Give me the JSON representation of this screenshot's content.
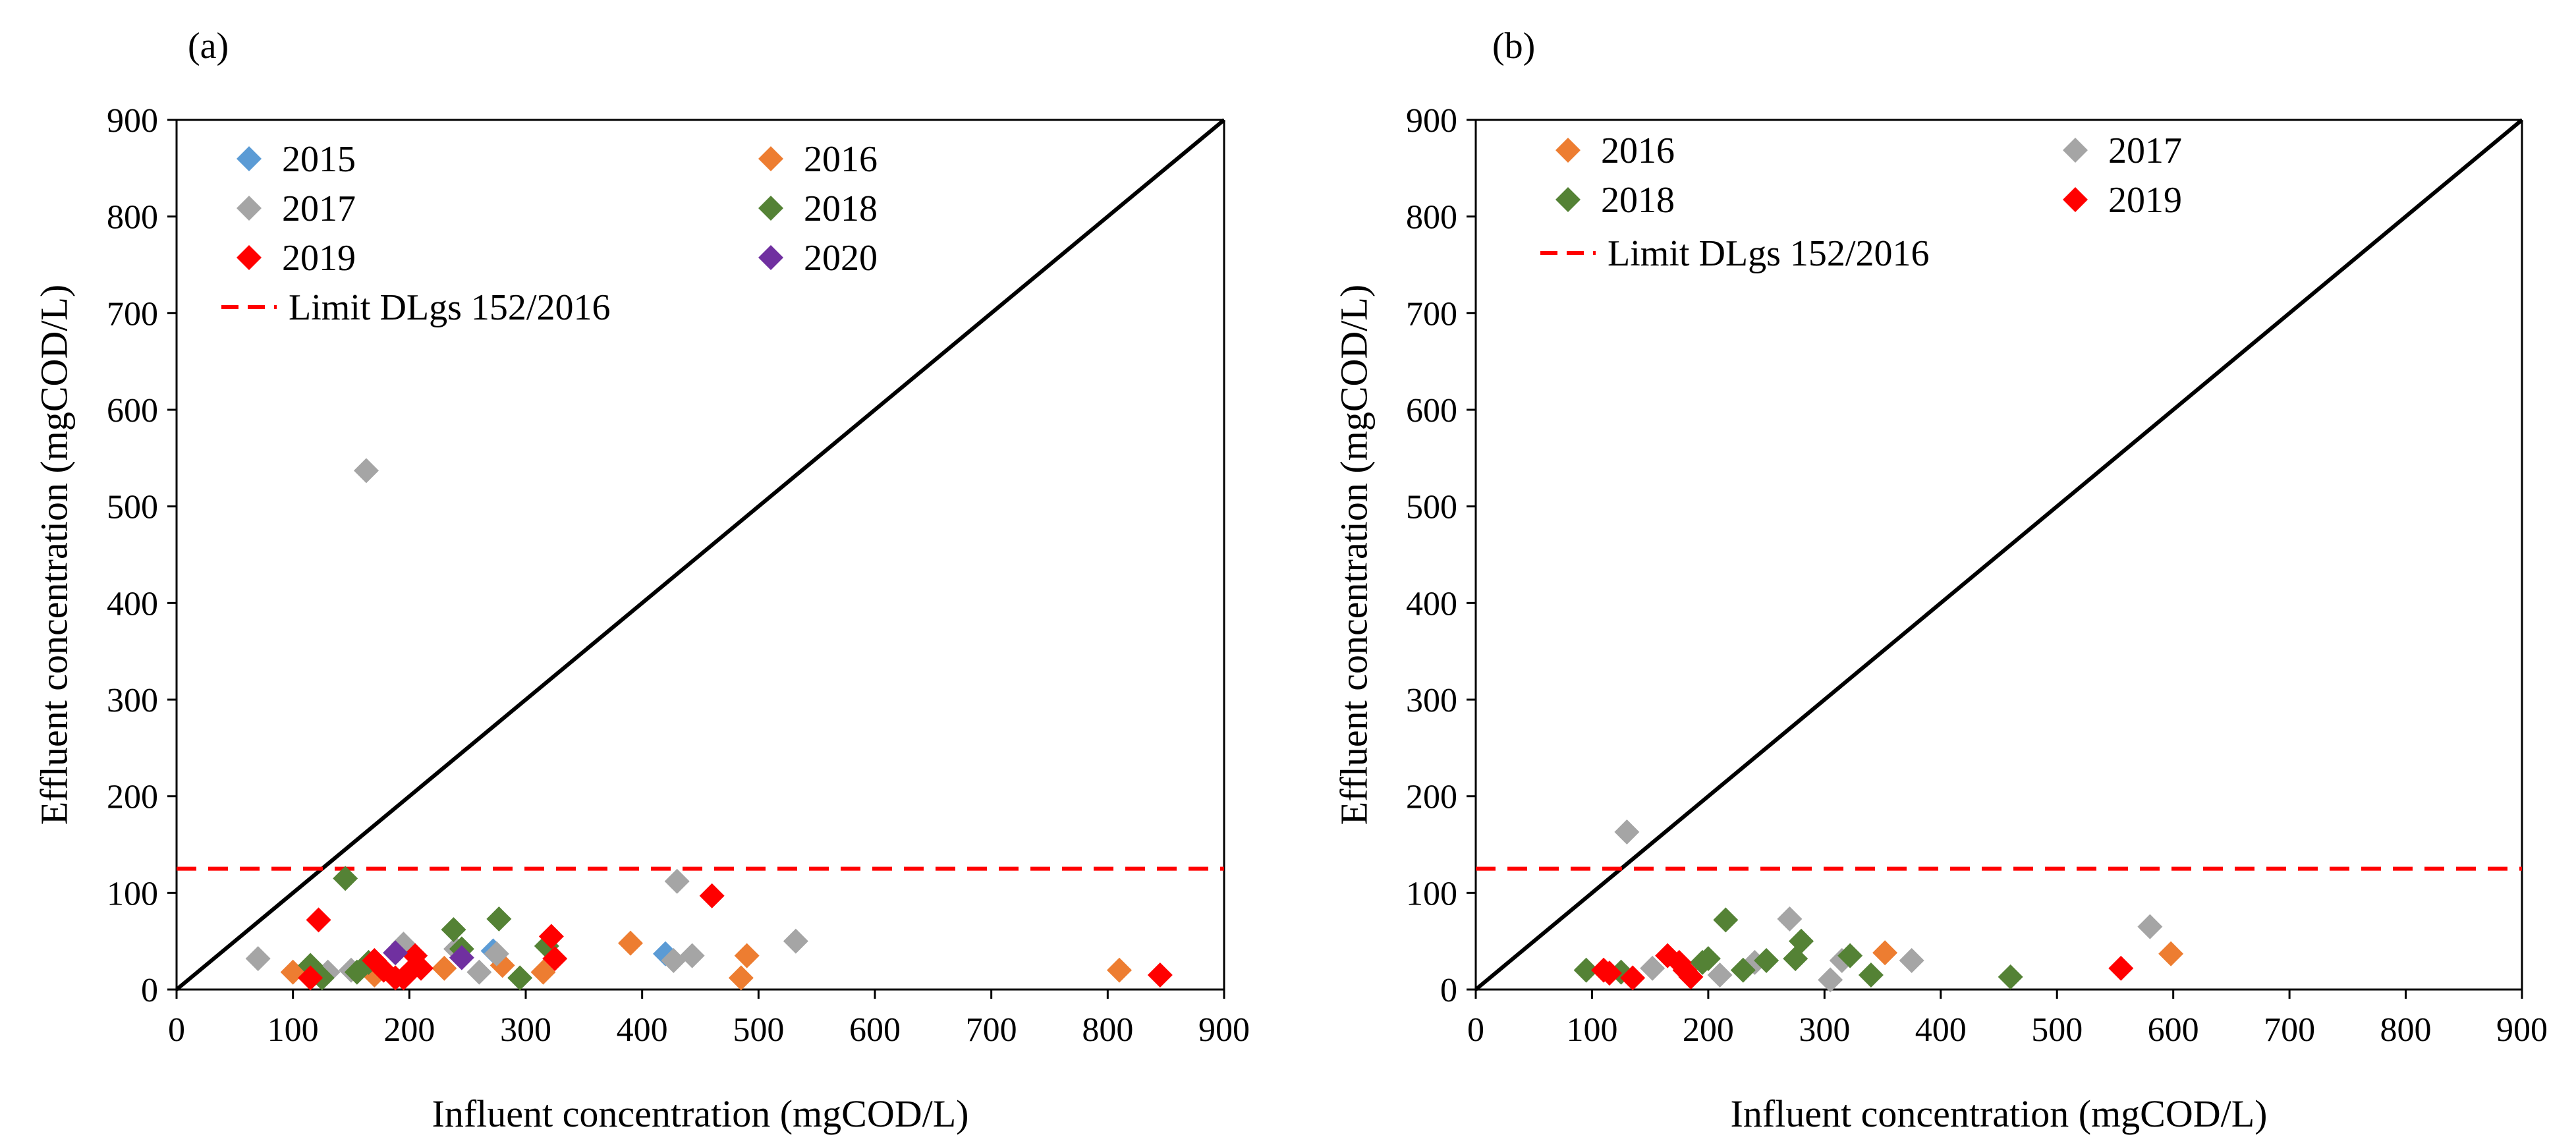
{
  "chart_data": [
    {
      "type": "scatter",
      "panel_label": "(a)",
      "xlabel": "Influent concentration (mgCOD/L)",
      "ylabel": "Effluent concentration (mgCOD/L)",
      "xlim": [
        0,
        900
      ],
      "ylim": [
        0,
        900
      ],
      "xticks": [
        "0",
        "100",
        "200",
        "300",
        "400",
        "500",
        "600",
        "700",
        "800",
        "900"
      ],
      "yticks": [
        "0",
        "100",
        "200",
        "300",
        "400",
        "500",
        "600",
        "700",
        "800",
        "900"
      ],
      "grid": false,
      "legend_position": "top-left",
      "legend_columns": 2,
      "reference_line": {
        "label": "1:1",
        "from": [
          0,
          0
        ],
        "to": [
          900,
          900
        ],
        "color": "#000000"
      },
      "limit_line": {
        "label": "Limit DLgs 152/2016",
        "y": 125,
        "color": "#ff0000"
      },
      "series": [
        {
          "name": "2015",
          "color": "#5b9bd5",
          "points": [
            [
              420,
              37
            ],
            [
              272,
              40
            ]
          ]
        },
        {
          "name": "2016",
          "color": "#ed7d31",
          "points": [
            [
              100,
              18
            ],
            [
              230,
              22
            ],
            [
              280,
              25
            ],
            [
              315,
              18
            ],
            [
              390,
              48
            ],
            [
              485,
              12
            ],
            [
              490,
              35
            ],
            [
              810,
              20
            ],
            [
              170,
              15
            ]
          ]
        },
        {
          "name": "2017",
          "color": "#a5a5a5",
          "points": [
            [
              70,
              32
            ],
            [
              130,
              18
            ],
            [
              163,
              537
            ],
            [
              195,
              47
            ],
            [
              240,
              42
            ],
            [
              260,
              18
            ],
            [
              275,
              37
            ],
            [
              427,
              30
            ],
            [
              430,
              112
            ],
            [
              443,
              35
            ],
            [
              532,
              50
            ],
            [
              150,
              20
            ]
          ]
        },
        {
          "name": "2018",
          "color": "#548235",
          "points": [
            [
              115,
              25
            ],
            [
              125,
              12
            ],
            [
              145,
              115
            ],
            [
              155,
              18
            ],
            [
              238,
              62
            ],
            [
              245,
              42
            ],
            [
              277,
              73
            ],
            [
              295,
              12
            ],
            [
              318,
              45
            ],
            [
              165,
              28
            ]
          ]
        },
        {
          "name": "2019",
          "color": "#ff0000",
          "points": [
            [
              115,
              12
            ],
            [
              122,
              72
            ],
            [
              170,
              30
            ],
            [
              178,
              20
            ],
            [
              188,
              12
            ],
            [
              200,
              18
            ],
            [
              205,
              35
            ],
            [
              210,
              22
            ],
            [
              322,
              55
            ],
            [
              325,
              32
            ],
            [
              460,
              97
            ],
            [
              845,
              15
            ],
            [
              195,
              12
            ]
          ]
        },
        {
          "name": "2020",
          "color": "#7030a0",
          "points": [
            [
              188,
              38
            ],
            [
              245,
              33
            ]
          ]
        }
      ]
    },
    {
      "type": "scatter",
      "panel_label": "(b)",
      "xlabel": "Influent concentration (mgCOD/L)",
      "ylabel": "Effluent concentration (mgCOD/L)",
      "xlim": [
        0,
        900
      ],
      "ylim": [
        0,
        900
      ],
      "xticks": [
        "0",
        "100",
        "200",
        "300",
        "400",
        "500",
        "600",
        "700",
        "800",
        "900"
      ],
      "yticks": [
        "0",
        "100",
        "200",
        "300",
        "400",
        "500",
        "600",
        "700",
        "800",
        "900"
      ],
      "grid": false,
      "legend_position": "top-left",
      "legend_columns": 2,
      "reference_line": {
        "label": "1:1",
        "from": [
          0,
          0
        ],
        "to": [
          900,
          900
        ],
        "color": "#000000"
      },
      "limit_line": {
        "label": "Limit DLgs 152/2016",
        "y": 125,
        "color": "#ff0000"
      },
      "series": [
        {
          "name": "2016",
          "color": "#ed7d31",
          "points": [
            [
              352,
              38
            ],
            [
              598,
              37
            ]
          ]
        },
        {
          "name": "2017",
          "color": "#a5a5a5",
          "points": [
            [
              130,
              163
            ],
            [
              152,
              22
            ],
            [
              210,
              15
            ],
            [
              240,
              28
            ],
            [
              270,
              73
            ],
            [
              305,
              10
            ],
            [
              315,
              30
            ],
            [
              375,
              30
            ],
            [
              580,
              65
            ]
          ]
        },
        {
          "name": "2018",
          "color": "#548235",
          "points": [
            [
              95,
              20
            ],
            [
              125,
              18
            ],
            [
              195,
              28
            ],
            [
              200,
              32
            ],
            [
              215,
              72
            ],
            [
              230,
              20
            ],
            [
              250,
              30
            ],
            [
              275,
              32
            ],
            [
              280,
              50
            ],
            [
              322,
              35
            ],
            [
              340,
              15
            ],
            [
              460,
              13
            ]
          ]
        },
        {
          "name": "2019",
          "color": "#ff0000",
          "points": [
            [
              110,
              20
            ],
            [
              115,
              17
            ],
            [
              135,
              12
            ],
            [
              165,
              35
            ],
            [
              175,
              28
            ],
            [
              180,
              20
            ],
            [
              185,
              13
            ],
            [
              555,
              22
            ]
          ]
        }
      ]
    }
  ]
}
